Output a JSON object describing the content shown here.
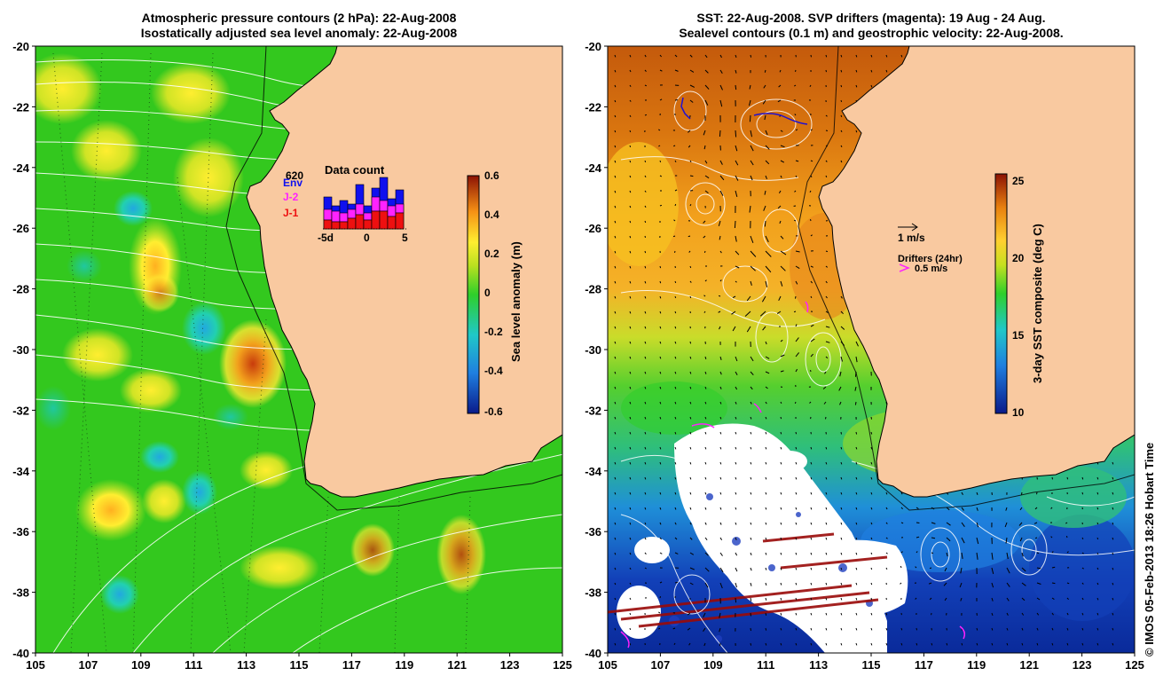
{
  "left_panel": {
    "title_line1": "Atmospheric pressure contours (2 hPa): 22-Aug-2008",
    "title_line2": "Isostatically adjusted sea level anomaly: 22-Aug-2008",
    "colorbar": {
      "label": "Sea level anomaly (m)",
      "ticks": [
        "0.6",
        "0.4",
        "0.2",
        "0",
        "-0.2",
        "-0.4",
        "-0.6"
      ]
    },
    "data_count": {
      "title": "Data count",
      "max_label": "620",
      "legend": [
        "Env",
        "J-2",
        "J-1"
      ],
      "x_ticks": [
        "-5d",
        "0",
        "5"
      ]
    }
  },
  "right_panel": {
    "title_line1": "SST: 22-Aug-2008. SVP drifters (magenta): 19 Aug - 24 Aug.",
    "title_line2": "Sealevel contours (0.1 m) and geostrophic velocity: 22-Aug-2008.",
    "colorbar": {
      "label": "3-day SST composite (deg C)",
      "ticks": [
        "25",
        "20",
        "15",
        "10"
      ]
    },
    "velocity_legend": "1 m/s",
    "drifter_legend_title": "Drifters (24hr)",
    "drifter_legend_value": "0.5 m/s"
  },
  "axes": {
    "lat_ticks": [
      "-20",
      "-22",
      "-24",
      "-26",
      "-28",
      "-30",
      "-32",
      "-34",
      "-36",
      "-38",
      "-40"
    ],
    "lon_ticks": [
      "105",
      "107",
      "109",
      "111",
      "113",
      "115",
      "117",
      "119",
      "121",
      "123",
      "125"
    ]
  },
  "credit": "© IMOS 05-Feb-2013 18:26 Hobart Time",
  "colors": {
    "land": "#f9c9a0",
    "ocean_base": "#33c81e",
    "drifter": "#ff22ff",
    "coast": "#000000"
  }
}
